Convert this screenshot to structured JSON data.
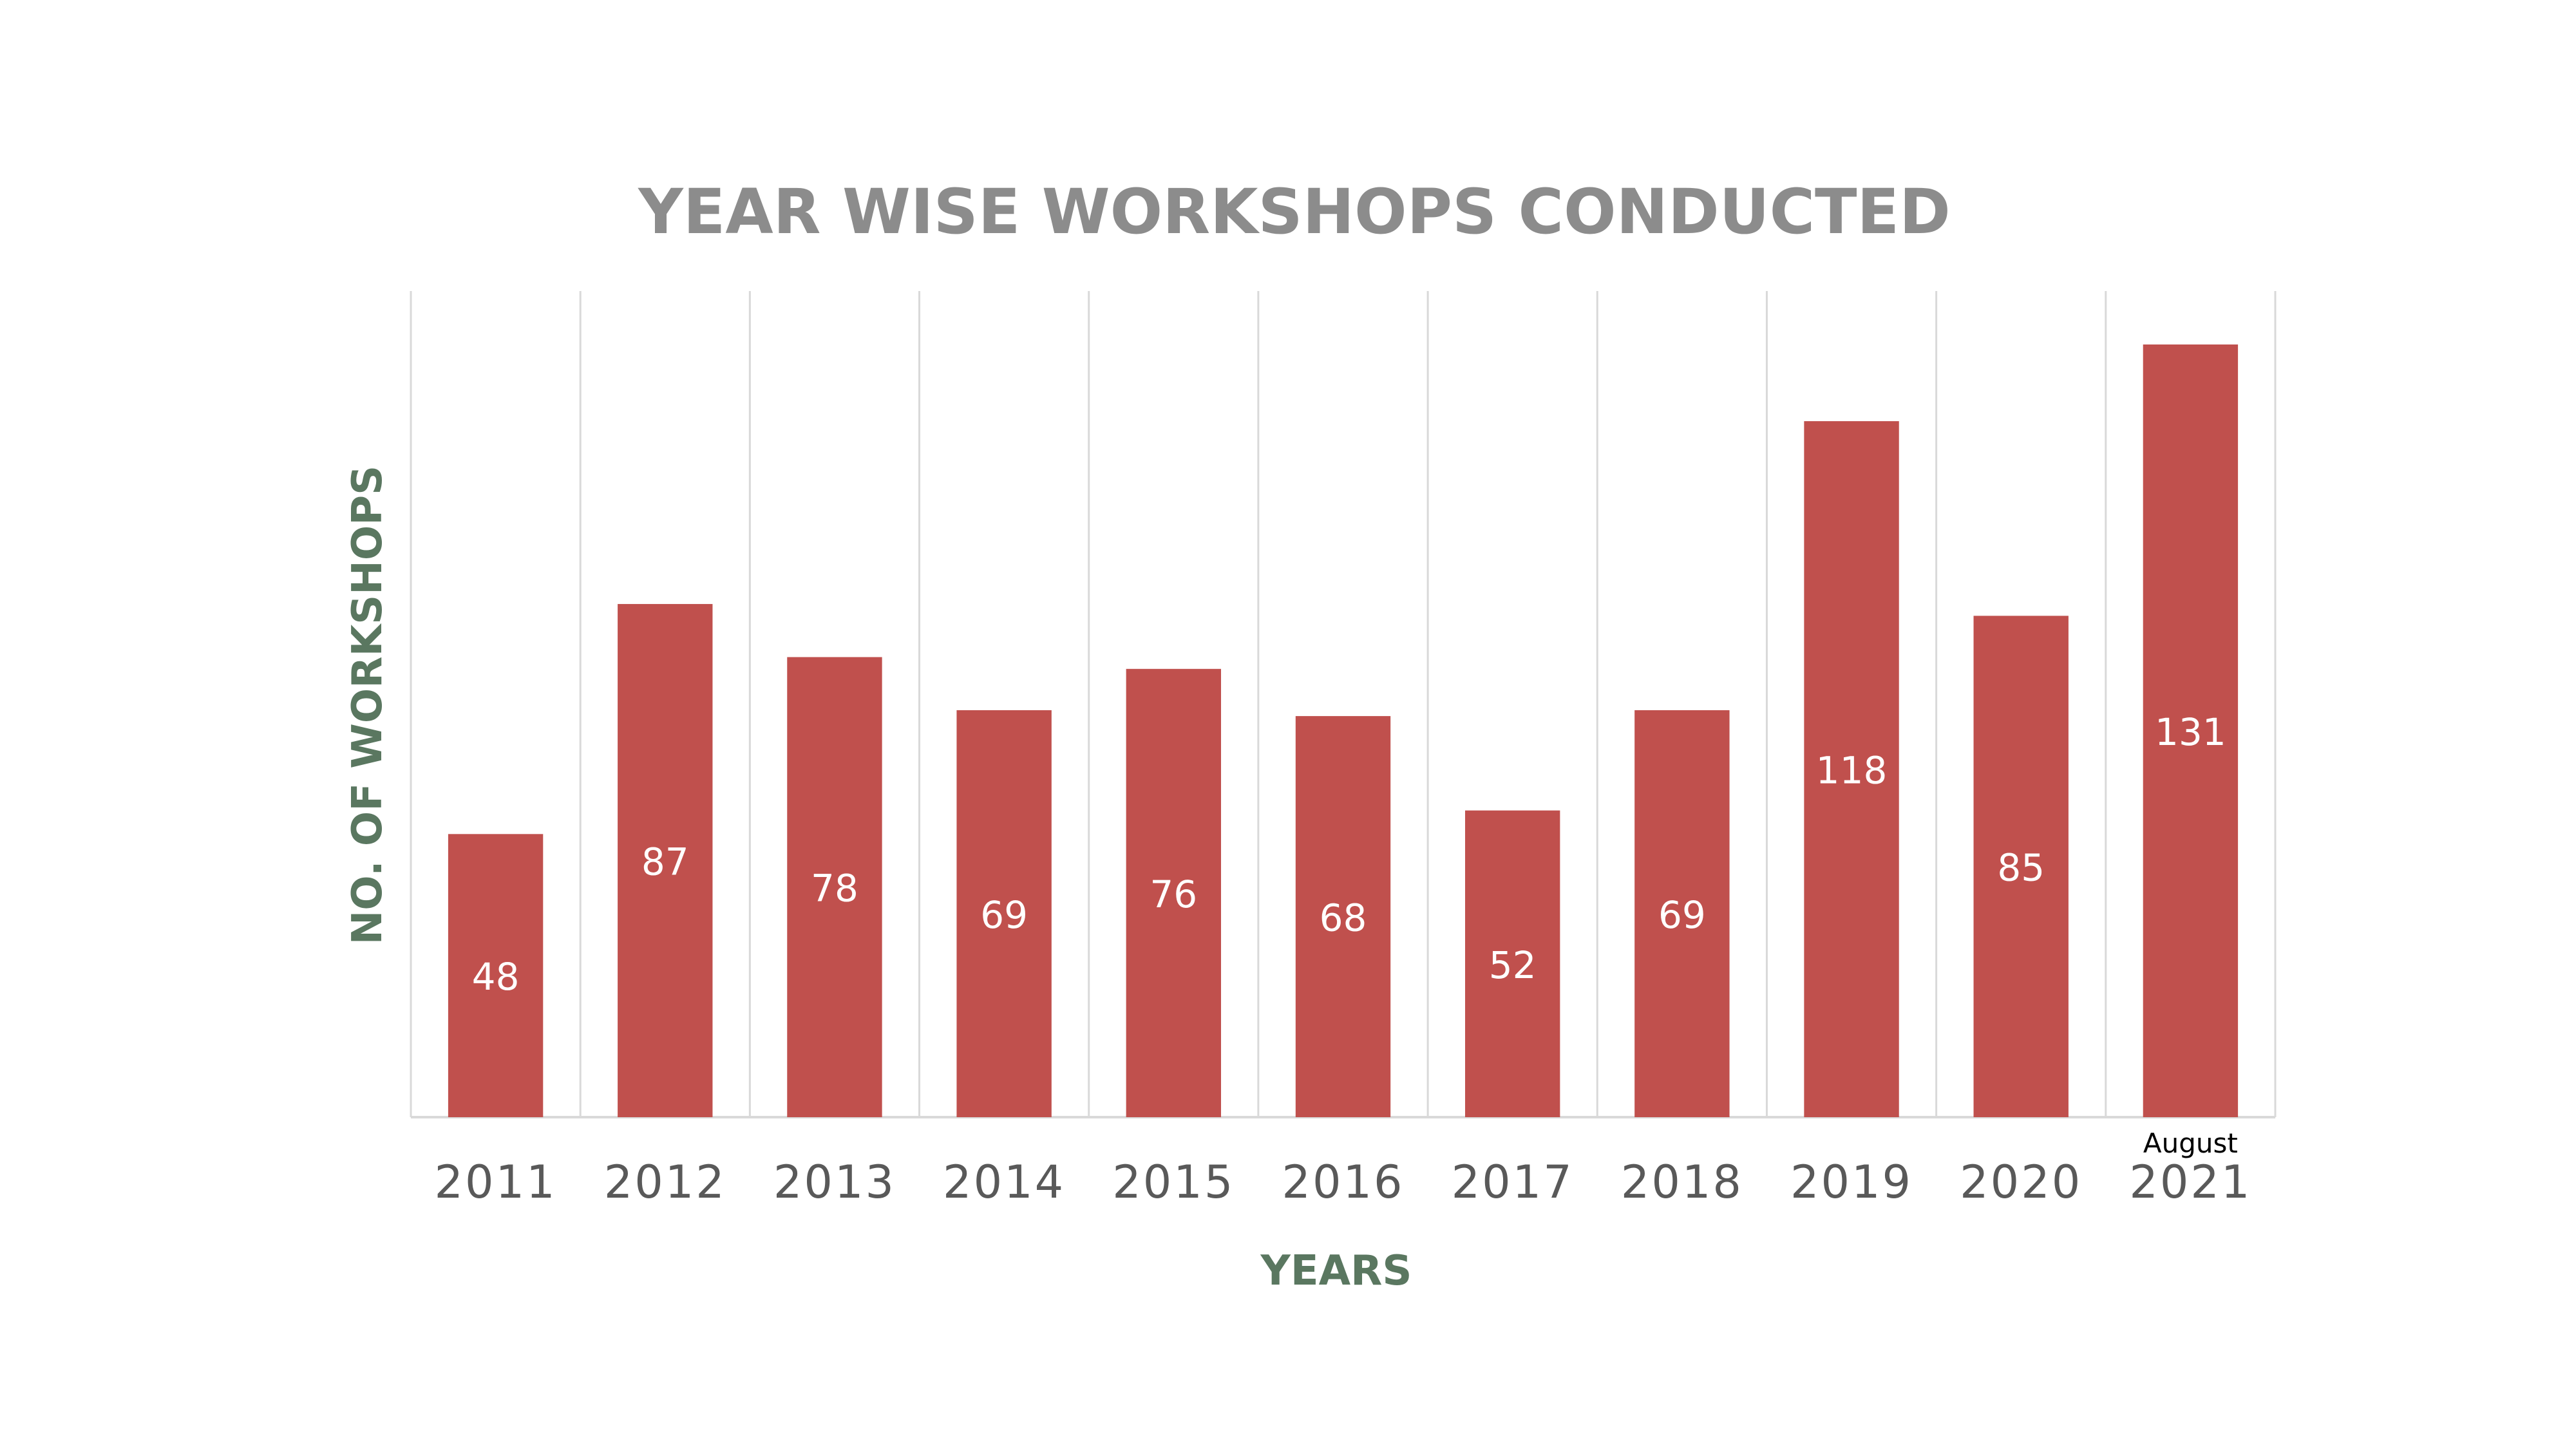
{
  "chart_data": {
    "type": "bar",
    "title": "YEAR WISE WORKSHOPS CONDUCTED",
    "xlabel": "YEARS",
    "ylabel": "NO. OF WORKSHOPS",
    "categories": [
      "2011",
      "2012",
      "2013",
      "2014",
      "2015",
      "2016",
      "2017",
      "2018",
      "2019",
      "2020",
      "2021"
    ],
    "category_annotations": {
      "2021": "August"
    },
    "series": [
      {
        "values": [
          48,
          87,
          78,
          69,
          76,
          68,
          52,
          69,
          118,
          85,
          131
        ]
      }
    ],
    "ylim": [
      0,
      140
    ],
    "grid": "vertical-category-separators",
    "legend": "none",
    "data_labels": true,
    "colors": {
      "bar": "#C0504D",
      "title": "#8C8C8C",
      "axis_title": "#5A7760",
      "tick_label": "#595959",
      "data_label": "#FFFFFF",
      "grid": "#D9D9D9",
      "annotation": "#000000"
    }
  }
}
